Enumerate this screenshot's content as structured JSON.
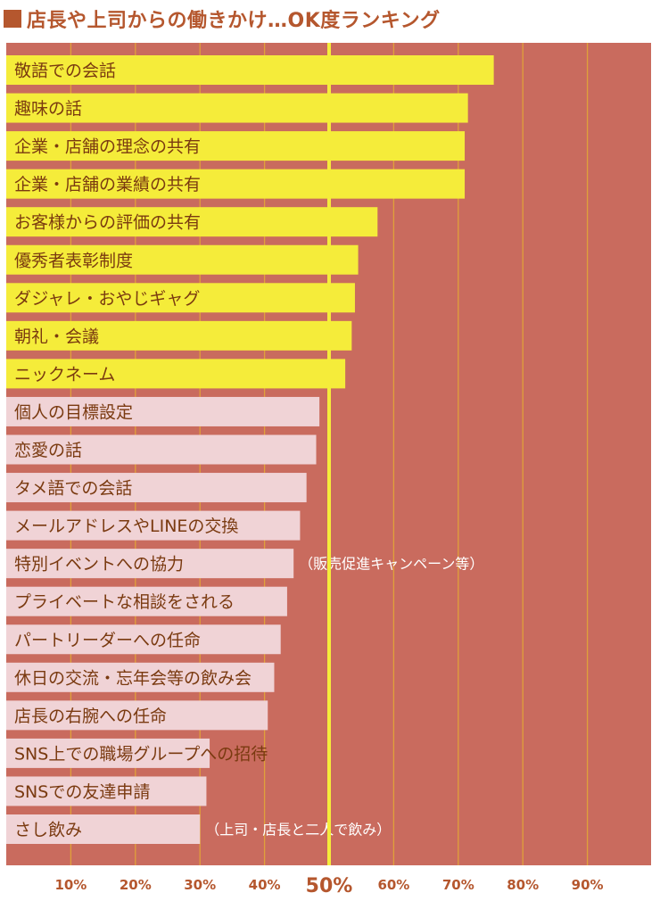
{
  "title": "店長や上司からの働きかけ…OK度ランキング",
  "colors": {
    "background": "#c96b5e",
    "title": "#b5572e",
    "bar_ok": "#f5ec3a",
    "bar_other": "#f0d3d6",
    "gridline": "#e0a03a",
    "fifty_line": "#f5ec3a",
    "label": "#7a3a10",
    "note": "#ffffff"
  },
  "chart_data": {
    "type": "bar",
    "orientation": "horizontal",
    "title": "店長や上司からの働きかけ…OK度ランキング",
    "xlabel": "",
    "ylabel": "",
    "xlim": [
      0,
      100
    ],
    "categories": [
      "敬語での会話",
      "趣味の話",
      "企業・店舗の理念の共有",
      "企業・店舗の業績の共有",
      "お客様からの評価の共有",
      "優秀者表彰制度",
      "ダジャレ・おやじギャグ",
      "朝礼・会議",
      "ニックネーム",
      "個人の目標設定",
      "恋愛の話",
      "タメ語での会話",
      "メールアドレスやLINEの交換",
      "特別イベントへの協力",
      "プライベートな相談をされる",
      "パートリーダーへの任命",
      "休日の交流・忘年会等の飲み会",
      "店長の右腕への任命",
      "SNS上での職場グループへの招待",
      "SNSでの友達申請",
      "さし飲み"
    ],
    "values": [
      75.5,
      71.5,
      71,
      71,
      57.5,
      54.5,
      54,
      53.5,
      52.5,
      48.5,
      48,
      46.5,
      45.5,
      44.5,
      43.5,
      42.5,
      41.5,
      40.5,
      31.5,
      31,
      30
    ],
    "notes": {
      "13": "（販売促進キャンペーン等）",
      "20": "（上司・店長と二人で飲み）"
    },
    "highlight_threshold": 50,
    "xtick_labels": [
      "10%",
      "20%",
      "30%",
      "40%",
      "50%",
      "60%",
      "70%",
      "80%",
      "90%"
    ],
    "xtick_values": [
      10,
      20,
      30,
      40,
      50,
      60,
      70,
      80,
      90
    ],
    "reference_line": 50,
    "grid": true
  }
}
